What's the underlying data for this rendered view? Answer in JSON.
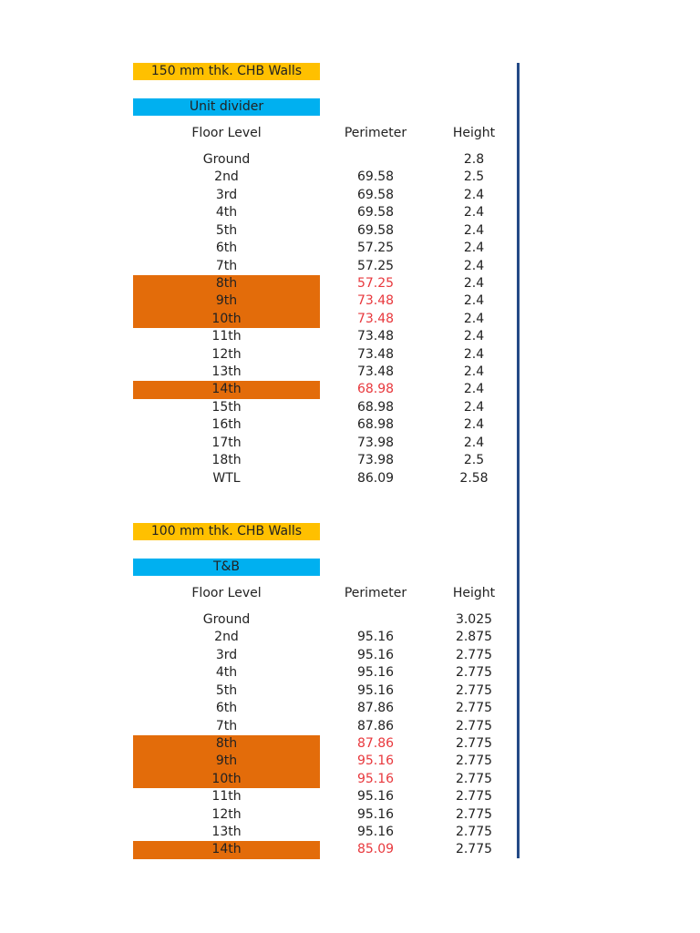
{
  "sections": [
    {
      "title": "150 mm thk. CHB Walls",
      "subtitle": "Unit divider",
      "headers": [
        "Floor Level",
        "Perimeter",
        "Height"
      ],
      "rows": [
        {
          "floor": "Ground",
          "perimeter": null,
          "height": 2.8,
          "highlighted": false
        },
        {
          "floor": "2nd",
          "perimeter": 69.58,
          "height": 2.5,
          "highlighted": false
        },
        {
          "floor": "3rd",
          "perimeter": 69.58,
          "height": 2.4,
          "highlighted": false
        },
        {
          "floor": "4th",
          "perimeter": 69.58,
          "height": 2.4,
          "highlighted": false
        },
        {
          "floor": "5th",
          "perimeter": 69.58,
          "height": 2.4,
          "highlighted": false
        },
        {
          "floor": "6th",
          "perimeter": 57.25,
          "height": 2.4,
          "highlighted": false
        },
        {
          "floor": "7th",
          "perimeter": 57.25,
          "height": 2.4,
          "highlighted": false
        },
        {
          "floor": "8th",
          "perimeter": 57.25,
          "height": 2.4,
          "highlighted": true
        },
        {
          "floor": "9th",
          "perimeter": 73.48,
          "height": 2.4,
          "highlighted": true
        },
        {
          "floor": "10th",
          "perimeter": 73.48,
          "height": 2.4,
          "highlighted": true
        },
        {
          "floor": "11th",
          "perimeter": 73.48,
          "height": 2.4,
          "highlighted": false
        },
        {
          "floor": "12th",
          "perimeter": 73.48,
          "height": 2.4,
          "highlighted": false
        },
        {
          "floor": "13th",
          "perimeter": 73.48,
          "height": 2.4,
          "highlighted": false
        },
        {
          "floor": "14th",
          "perimeter": 68.98,
          "height": 2.4,
          "highlighted": true
        },
        {
          "floor": "15th",
          "perimeter": 68.98,
          "height": 2.4,
          "highlighted": false
        },
        {
          "floor": "16th",
          "perimeter": 68.98,
          "height": 2.4,
          "highlighted": false
        },
        {
          "floor": "17th",
          "perimeter": 73.98,
          "height": 2.4,
          "highlighted": false
        },
        {
          "floor": "18th",
          "perimeter": 73.98,
          "height": 2.5,
          "highlighted": false
        },
        {
          "floor": "WTL",
          "perimeter": 86.09,
          "height": 2.58,
          "highlighted": false
        }
      ]
    },
    {
      "title": "100 mm thk. CHB Walls",
      "subtitle": "T&B",
      "headers": [
        "Floor Level",
        "Perimeter",
        "Height"
      ],
      "rows": [
        {
          "floor": "Ground",
          "perimeter": null,
          "height": 3.025,
          "highlighted": false
        },
        {
          "floor": "2nd",
          "perimeter": 95.16,
          "height": 2.875,
          "highlighted": false
        },
        {
          "floor": "3rd",
          "perimeter": 95.16,
          "height": 2.775,
          "highlighted": false
        },
        {
          "floor": "4th",
          "perimeter": 95.16,
          "height": 2.775,
          "highlighted": false
        },
        {
          "floor": "5th",
          "perimeter": 95.16,
          "height": 2.775,
          "highlighted": false
        },
        {
          "floor": "6th",
          "perimeter": 87.86,
          "height": 2.775,
          "highlighted": false
        },
        {
          "floor": "7th",
          "perimeter": 87.86,
          "height": 2.775,
          "highlighted": false
        },
        {
          "floor": "8th",
          "perimeter": 87.86,
          "height": 2.775,
          "highlighted": true
        },
        {
          "floor": "9th",
          "perimeter": 95.16,
          "height": 2.775,
          "highlighted": true
        },
        {
          "floor": "10th",
          "perimeter": 95.16,
          "height": 2.775,
          "highlighted": true
        },
        {
          "floor": "11th",
          "perimeter": 95.16,
          "height": 2.775,
          "highlighted": false
        },
        {
          "floor": "12th",
          "perimeter": 95.16,
          "height": 2.775,
          "highlighted": false
        },
        {
          "floor": "13th",
          "perimeter": 95.16,
          "height": 2.775,
          "highlighted": false
        },
        {
          "floor": "14th",
          "perimeter": 85.09,
          "height": 2.775,
          "highlighted": true
        }
      ]
    }
  ]
}
